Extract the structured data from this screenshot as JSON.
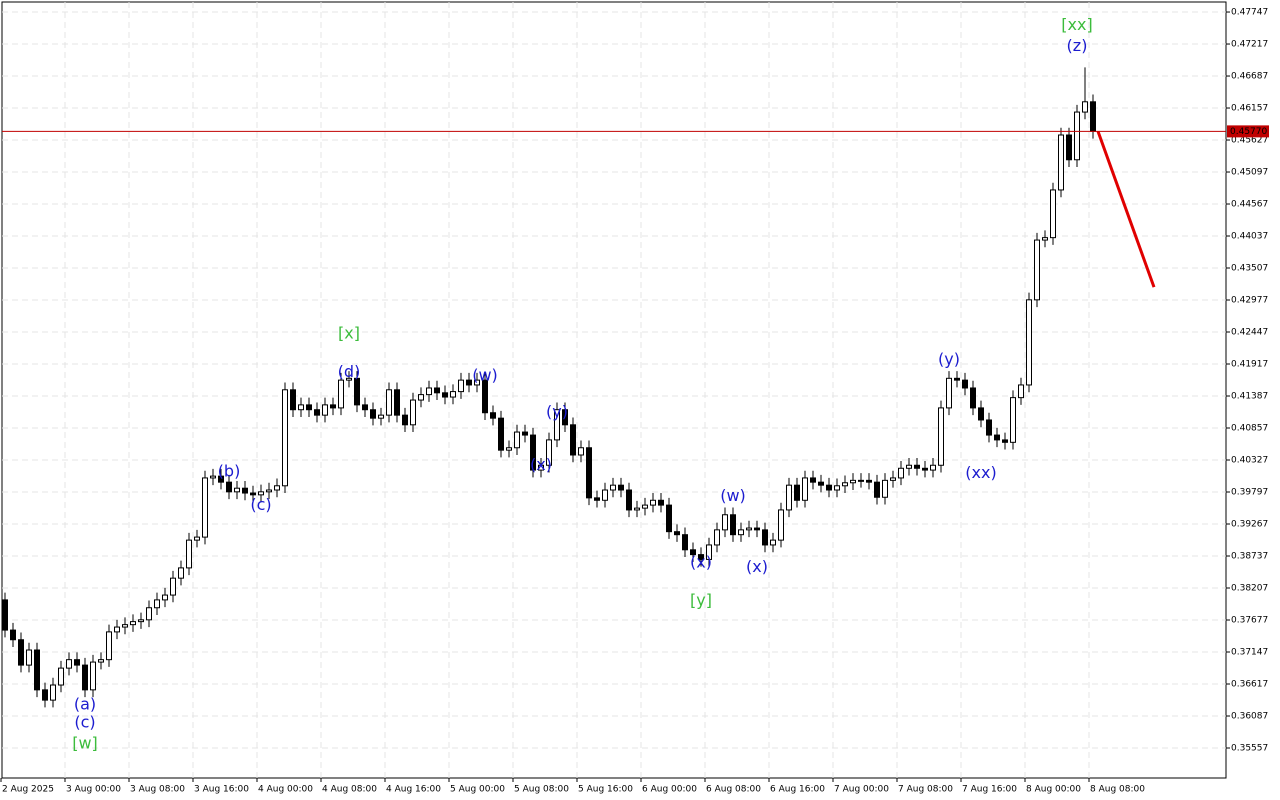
{
  "chart_data": {
    "type": "candlestick",
    "ylim": [
      0.3506,
      0.47913
    ],
    "yticks": [
      0.47747,
      0.47217,
      0.46687,
      0.46157,
      0.45627,
      0.45097,
      0.44567,
      0.44037,
      0.43507,
      0.42977,
      0.42447,
      0.41917,
      0.41387,
      0.40857,
      0.40327,
      0.39797,
      0.39267,
      0.38737,
      0.38207,
      0.37677,
      0.37147,
      0.36617,
      0.36087,
      0.35557
    ],
    "grid": true,
    "x_labels": [
      "2 Aug 2025",
      "3 Aug 00:00",
      "3 Aug 08:00",
      "3 Aug 16:00",
      "4 Aug 00:00",
      "4 Aug 08:00",
      "4 Aug 16:00",
      "5 Aug 00:00",
      "5 Aug 08:00",
      "5 Aug 16:00",
      "6 Aug 00:00",
      "6 Aug 08:00",
      "6 Aug 16:00",
      "7 Aug 00:00",
      "7 Aug 08:00",
      "7 Aug 16:00",
      "8 Aug 00:00",
      "8 Aug 08:00"
    ],
    "candles": [
      [
        0.3801,
        0.3813,
        0.3739,
        0.3751
      ],
      [
        0.3751,
        0.3763,
        0.3723,
        0.3735
      ],
      [
        0.3735,
        0.3747,
        0.3681,
        0.3693
      ],
      [
        0.3693,
        0.373,
        0.3681,
        0.3718
      ],
      [
        0.3718,
        0.373,
        0.364,
        0.3652
      ],
      [
        0.3652,
        0.3664,
        0.3623,
        0.3635
      ],
      [
        0.3635,
        0.3672,
        0.3623,
        0.366
      ],
      [
        0.366,
        0.37,
        0.3648,
        0.3688
      ],
      [
        0.3688,
        0.3714,
        0.3676,
        0.3702
      ],
      [
        0.3702,
        0.3714,
        0.3681,
        0.3693
      ],
      [
        0.3693,
        0.3705,
        0.364,
        0.3652
      ],
      [
        0.3652,
        0.371,
        0.364,
        0.3698
      ],
      [
        0.3698,
        0.3714,
        0.3686,
        0.3702
      ],
      [
        0.3702,
        0.376,
        0.369,
        0.3748
      ],
      [
        0.3748,
        0.3768,
        0.3736,
        0.3756
      ],
      [
        0.3756,
        0.3772,
        0.3744,
        0.376
      ],
      [
        0.376,
        0.3777,
        0.3748,
        0.3765
      ],
      [
        0.3765,
        0.378,
        0.3753,
        0.3768
      ],
      [
        0.3768,
        0.38,
        0.3756,
        0.3788
      ],
      [
        0.3788,
        0.3813,
        0.3776,
        0.3801
      ],
      [
        0.3801,
        0.3821,
        0.3789,
        0.3809
      ],
      [
        0.3809,
        0.3849,
        0.3797,
        0.3837
      ],
      [
        0.3837,
        0.3866,
        0.3825,
        0.3854
      ],
      [
        0.3854,
        0.3912,
        0.3842,
        0.39
      ],
      [
        0.39,
        0.3917,
        0.3888,
        0.3905
      ],
      [
        0.3905,
        0.4015,
        0.3893,
        0.4003
      ],
      [
        0.4003,
        0.4018,
        0.3991,
        0.4006
      ],
      [
        0.4006,
        0.4018,
        0.3984,
        0.3996
      ],
      [
        0.3996,
        0.4008,
        0.3968,
        0.398
      ],
      [
        0.398,
        0.3998,
        0.3968,
        0.3986
      ],
      [
        0.3986,
        0.3998,
        0.3966,
        0.3978
      ],
      [
        0.3978,
        0.399,
        0.3963,
        0.3975
      ],
      [
        0.3975,
        0.3992,
        0.3963,
        0.398
      ],
      [
        0.398,
        0.3995,
        0.3968,
        0.3983
      ],
      [
        0.3983,
        0.4002,
        0.3971,
        0.399
      ],
      [
        0.399,
        0.4161,
        0.3978,
        0.4149
      ],
      [
        0.4149,
        0.4161,
        0.4104,
        0.4116
      ],
      [
        0.4116,
        0.4136,
        0.4104,
        0.4124
      ],
      [
        0.4124,
        0.4136,
        0.4104,
        0.4116
      ],
      [
        0.4116,
        0.4128,
        0.4095,
        0.4107
      ],
      [
        0.4107,
        0.4136,
        0.4095,
        0.4124
      ],
      [
        0.4124,
        0.4136,
        0.4107,
        0.4119
      ],
      [
        0.4119,
        0.4177,
        0.4107,
        0.4165
      ],
      [
        0.4165,
        0.418,
        0.4153,
        0.4168
      ],
      [
        0.4168,
        0.418,
        0.4112,
        0.4124
      ],
      [
        0.4124,
        0.4136,
        0.4104,
        0.4116
      ],
      [
        0.4116,
        0.4128,
        0.409,
        0.4102
      ],
      [
        0.4102,
        0.4119,
        0.409,
        0.4107
      ],
      [
        0.4107,
        0.4161,
        0.4095,
        0.4149
      ],
      [
        0.4149,
        0.4161,
        0.4095,
        0.4107
      ],
      [
        0.4107,
        0.4119,
        0.4079,
        0.4091
      ],
      [
        0.4091,
        0.4144,
        0.4079,
        0.4132
      ],
      [
        0.4132,
        0.4153,
        0.412,
        0.4141
      ],
      [
        0.4141,
        0.4164,
        0.4129,
        0.4152
      ],
      [
        0.4152,
        0.4164,
        0.4132,
        0.4144
      ],
      [
        0.4144,
        0.4156,
        0.4125,
        0.4137
      ],
      [
        0.4137,
        0.4158,
        0.4125,
        0.4146
      ],
      [
        0.4146,
        0.4177,
        0.4134,
        0.4165
      ],
      [
        0.4165,
        0.4177,
        0.4145,
        0.4157
      ],
      [
        0.4157,
        0.4177,
        0.4145,
        0.4165
      ],
      [
        0.4165,
        0.4177,
        0.4099,
        0.4111
      ],
      [
        0.4111,
        0.4123,
        0.409,
        0.4102
      ],
      [
        0.4102,
        0.4114,
        0.4037,
        0.4049
      ],
      [
        0.4049,
        0.4065,
        0.4037,
        0.4053
      ],
      [
        0.4053,
        0.4091,
        0.4041,
        0.4079
      ],
      [
        0.4079,
        0.4091,
        0.4062,
        0.4074
      ],
      [
        0.4074,
        0.4086,
        0.4004,
        0.4016
      ],
      [
        0.4016,
        0.4036,
        0.4004,
        0.4024
      ],
      [
        0.4024,
        0.4078,
        0.4012,
        0.4066
      ],
      [
        0.4066,
        0.4128,
        0.4054,
        0.4116
      ],
      [
        0.4116,
        0.4128,
        0.4079,
        0.4091
      ],
      [
        0.4091,
        0.4103,
        0.4029,
        0.4041
      ],
      [
        0.4041,
        0.4065,
        0.4029,
        0.4053
      ],
      [
        0.4053,
        0.4065,
        0.3958,
        0.397
      ],
      [
        0.397,
        0.3982,
        0.3954,
        0.3966
      ],
      [
        0.3966,
        0.3995,
        0.3954,
        0.3983
      ],
      [
        0.3983,
        0.4003,
        0.3971,
        0.3991
      ],
      [
        0.3991,
        0.4003,
        0.3971,
        0.3983
      ],
      [
        0.3983,
        0.3995,
        0.3938,
        0.395
      ],
      [
        0.395,
        0.3965,
        0.3938,
        0.3953
      ],
      [
        0.3953,
        0.397,
        0.3941,
        0.3958
      ],
      [
        0.3958,
        0.3978,
        0.3946,
        0.3966
      ],
      [
        0.3966,
        0.3978,
        0.3946,
        0.3958
      ],
      [
        0.3958,
        0.397,
        0.3902,
        0.3914
      ],
      [
        0.3914,
        0.3926,
        0.3897,
        0.3909
      ],
      [
        0.3909,
        0.3921,
        0.3872,
        0.3884
      ],
      [
        0.3884,
        0.3896,
        0.3864,
        0.3876
      ],
      [
        0.3876,
        0.3888,
        0.3856,
        0.3868
      ],
      [
        0.3868,
        0.3904,
        0.3856,
        0.3892
      ],
      [
        0.3892,
        0.3929,
        0.388,
        0.3917
      ],
      [
        0.3917,
        0.3954,
        0.3905,
        0.3942
      ],
      [
        0.3942,
        0.3954,
        0.3897,
        0.3909
      ],
      [
        0.3909,
        0.3929,
        0.3897,
        0.3917
      ],
      [
        0.3917,
        0.3932,
        0.3905,
        0.392
      ],
      [
        0.392,
        0.3932,
        0.3905,
        0.3917
      ],
      [
        0.3917,
        0.3929,
        0.388,
        0.3892
      ],
      [
        0.3892,
        0.3912,
        0.388,
        0.39
      ],
      [
        0.39,
        0.3962,
        0.3888,
        0.395
      ],
      [
        0.395,
        0.4003,
        0.3938,
        0.3991
      ],
      [
        0.3991,
        0.4003,
        0.3954,
        0.3966
      ],
      [
        0.3966,
        0.4015,
        0.3954,
        0.4003
      ],
      [
        0.4003,
        0.4015,
        0.3984,
        0.3996
      ],
      [
        0.3996,
        0.4008,
        0.3979,
        0.3991
      ],
      [
        0.3991,
        0.4003,
        0.3971,
        0.3983
      ],
      [
        0.3983,
        0.4002,
        0.3971,
        0.399
      ],
      [
        0.399,
        0.4007,
        0.3978,
        0.3995
      ],
      [
        0.3995,
        0.4011,
        0.3983,
        0.3999
      ],
      [
        0.3999,
        0.4011,
        0.3987,
        0.3999
      ],
      [
        0.3999,
        0.4011,
        0.3984,
        0.3996
      ],
      [
        0.3996,
        0.4008,
        0.3959,
        0.3971
      ],
      [
        0.3971,
        0.4011,
        0.3959,
        0.3999
      ],
      [
        0.3999,
        0.4015,
        0.3987,
        0.4003
      ],
      [
        0.4003,
        0.4031,
        0.3991,
        0.4019
      ],
      [
        0.4019,
        0.4036,
        0.4007,
        0.4024
      ],
      [
        0.4024,
        0.4036,
        0.4007,
        0.4019
      ],
      [
        0.4019,
        0.4031,
        0.4004,
        0.4016
      ],
      [
        0.4016,
        0.4036,
        0.4004,
        0.4024
      ],
      [
        0.4024,
        0.4131,
        0.4012,
        0.4119
      ],
      [
        0.4119,
        0.418,
        0.4107,
        0.4168
      ],
      [
        0.4168,
        0.418,
        0.4153,
        0.4165
      ],
      [
        0.4165,
        0.4177,
        0.414,
        0.4152
      ],
      [
        0.4152,
        0.4164,
        0.4107,
        0.4119
      ],
      [
        0.4119,
        0.4131,
        0.4087,
        0.4099
      ],
      [
        0.4099,
        0.4111,
        0.4062,
        0.4074
      ],
      [
        0.4074,
        0.4086,
        0.4054,
        0.4066
      ],
      [
        0.4066,
        0.4078,
        0.405,
        0.4062
      ],
      [
        0.4062,
        0.4148,
        0.405,
        0.4136
      ],
      [
        0.4136,
        0.4169,
        0.4124,
        0.4157
      ],
      [
        0.4157,
        0.431,
        0.4145,
        0.4298
      ],
      [
        0.4298,
        0.4409,
        0.4286,
        0.4397
      ],
      [
        0.4397,
        0.4413,
        0.4385,
        0.4401
      ],
      [
        0.4401,
        0.4492,
        0.4389,
        0.448
      ],
      [
        0.448,
        0.4583,
        0.4468,
        0.4571
      ],
      [
        0.4571,
        0.4583,
        0.4518,
        0.453
      ],
      [
        0.453,
        0.4621,
        0.4518,
        0.4609
      ],
      [
        0.4609,
        0.4683,
        0.4597,
        0.4626
      ],
      [
        0.4626,
        0.4638,
        0.4565,
        0.4577
      ]
    ],
    "current_price": {
      "value": 0.4577,
      "label": "0.45770"
    },
    "price_line_color": "#c00000",
    "forecast": {
      "values": [
        0.4577,
        0.4319
      ],
      "color": "#e00000"
    },
    "annotations": [
      {
        "text": "(a)",
        "color": "#1c1ccf",
        "index": 10,
        "price": 0.3627
      },
      {
        "text": "(c)",
        "color": "#1c1ccf",
        "index": 10,
        "price": 0.3597
      },
      {
        "text": "[w]",
        "color": "#3cbc3c",
        "index": 10,
        "price": 0.3562
      },
      {
        "text": "(b)",
        "color": "#1c1ccf",
        "index": 28,
        "price": 0.4013
      },
      {
        "text": "(c)",
        "color": "#1c1ccf",
        "index": 32,
        "price": 0.3957
      },
      {
        "text": "[x]",
        "color": "#3cbc3c",
        "index": 43,
        "price": 0.4241
      },
      {
        "text": "(d)",
        "color": "#1c1ccf",
        "index": 43,
        "price": 0.4178
      },
      {
        "text": "(w)",
        "color": "#1c1ccf",
        "index": 60,
        "price": 0.4172
      },
      {
        "text": "(y)",
        "color": "#1c1ccf",
        "index": 69,
        "price": 0.4111
      },
      {
        "text": "(x)",
        "color": "#1c1ccf",
        "index": 67,
        "price": 0.4024
      },
      {
        "text": "(w)",
        "color": "#1c1ccf",
        "index": 91,
        "price": 0.3972
      },
      {
        "text": "(x)",
        "color": "#1c1ccf",
        "index": 87,
        "price": 0.3862
      },
      {
        "text": "[y]",
        "color": "#3cbc3c",
        "index": 87,
        "price": 0.3799
      },
      {
        "text": "(x)",
        "color": "#1c1ccf",
        "index": 94,
        "price": 0.3855
      },
      {
        "text": "(y)",
        "color": "#1c1ccf",
        "index": 118,
        "price": 0.4198
      },
      {
        "text": "(xx)",
        "color": "#1c1ccf",
        "index": 122,
        "price": 0.401
      },
      {
        "text": "(z)",
        "color": "#1c1ccf",
        "index": 134,
        "price": 0.4718
      },
      {
        "text": "[xx]",
        "color": "#3cbc3c",
        "index": 134,
        "price": 0.4752
      }
    ]
  }
}
